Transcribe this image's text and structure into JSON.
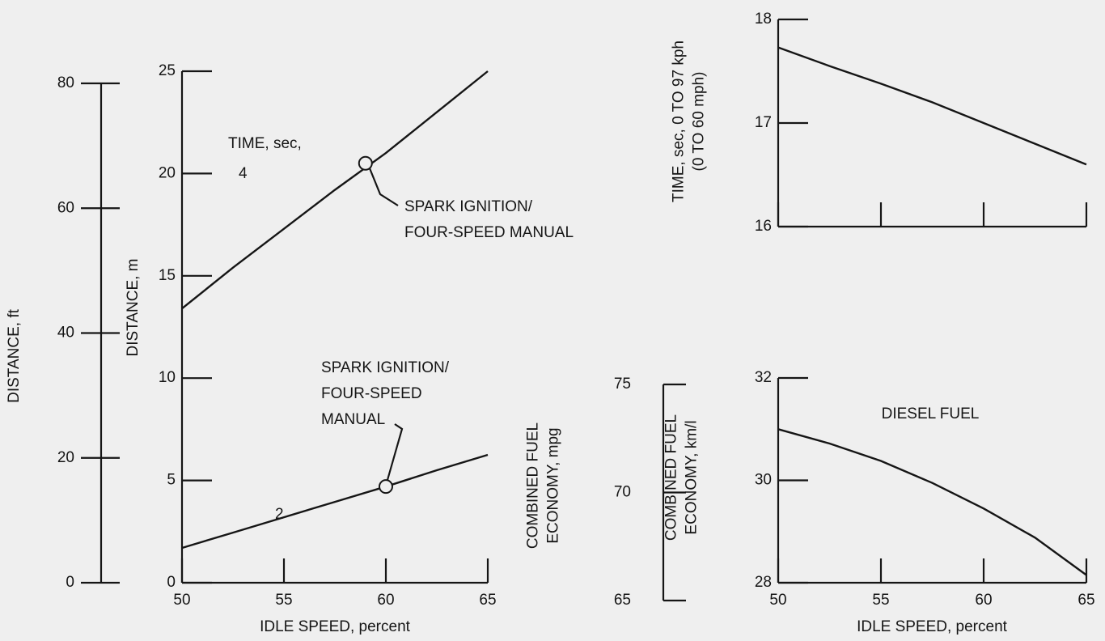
{
  "chart_data": [
    {
      "type": "line",
      "x": [
        50,
        52.5,
        55,
        57.5,
        60,
        62.5,
        65
      ],
      "series": [
        {
          "name": "4",
          "color": "#151515",
          "values": [
            13.4,
            15.4,
            17.3,
            19.2,
            21.0,
            23.0,
            25.0
          ]
        },
        {
          "name": "2",
          "color": "#151515",
          "values": [
            1.7,
            2.45,
            3.2,
            3.95,
            4.7,
            5.5,
            6.25
          ]
        }
      ],
      "xlim": [
        50,
        65
      ],
      "xticks": [
        50,
        55,
        60,
        65
      ],
      "xlabel": "IDLE SPEED, percent",
      "ylim": [
        0,
        25
      ],
      "yticks": [
        0,
        5,
        10,
        15,
        20,
        25
      ],
      "ylabel": [
        "DISTANCE, m"
      ],
      "y2lim": [
        0,
        80
      ],
      "y2ticks": [
        0,
        20,
        40,
        60,
        80
      ],
      "y2label": [
        "DISTANCE, ft"
      ],
      "series_title": "TIME, sec,",
      "annotations": [
        {
          "text": [
            "SPARK IGNITION/",
            "FOUR-SPEED MANUAL"
          ],
          "x": 59,
          "y": 20.5
        },
        {
          "text": [
            "SPARK IGNITION/",
            "FOUR-SPEED",
            "MANUAL"
          ],
          "x": 60,
          "y": 4.7
        }
      ]
    },
    {
      "type": "line",
      "x": [
        50,
        52.5,
        55,
        57.5,
        60,
        62.5,
        65
      ],
      "series": [
        {
          "color": "#151515",
          "values": [
            17.73,
            17.55,
            17.38,
            17.2,
            17.0,
            16.8,
            16.6
          ]
        }
      ],
      "xlim": [
        50,
        65
      ],
      "xticks": [
        50,
        55,
        60,
        65
      ],
      "show_xtick_labels": false,
      "ylim": [
        16,
        18
      ],
      "yticks": [
        16,
        17,
        18
      ],
      "ylabel": [
        "TIME, sec, 0 TO 97 kph",
        "(0 TO 60 mph)"
      ]
    },
    {
      "type": "line",
      "x": [
        50,
        52.5,
        55,
        57.5,
        60,
        62.5,
        65
      ],
      "series": [
        {
          "color": "#151515",
          "values": [
            31.0,
            30.72,
            30.38,
            29.95,
            29.45,
            28.88,
            28.15
          ]
        }
      ],
      "xlim": [
        50,
        65
      ],
      "xticks": [
        50,
        55,
        60,
        65
      ],
      "xlabel": "IDLE SPEED, percent",
      "ylim": [
        28,
        32
      ],
      "yticks": [
        28,
        30,
        32
      ],
      "ylabel": [
        "COMBINED FUEL",
        "ECONOMY, km/l"
      ],
      "y2lim": [
        65,
        75
      ],
      "y2ticks": [
        65,
        70,
        75
      ],
      "y2label": [
        "COMBINED FUEL",
        "ECONOMY, mpg"
      ],
      "note": "DIESEL FUEL"
    }
  ]
}
